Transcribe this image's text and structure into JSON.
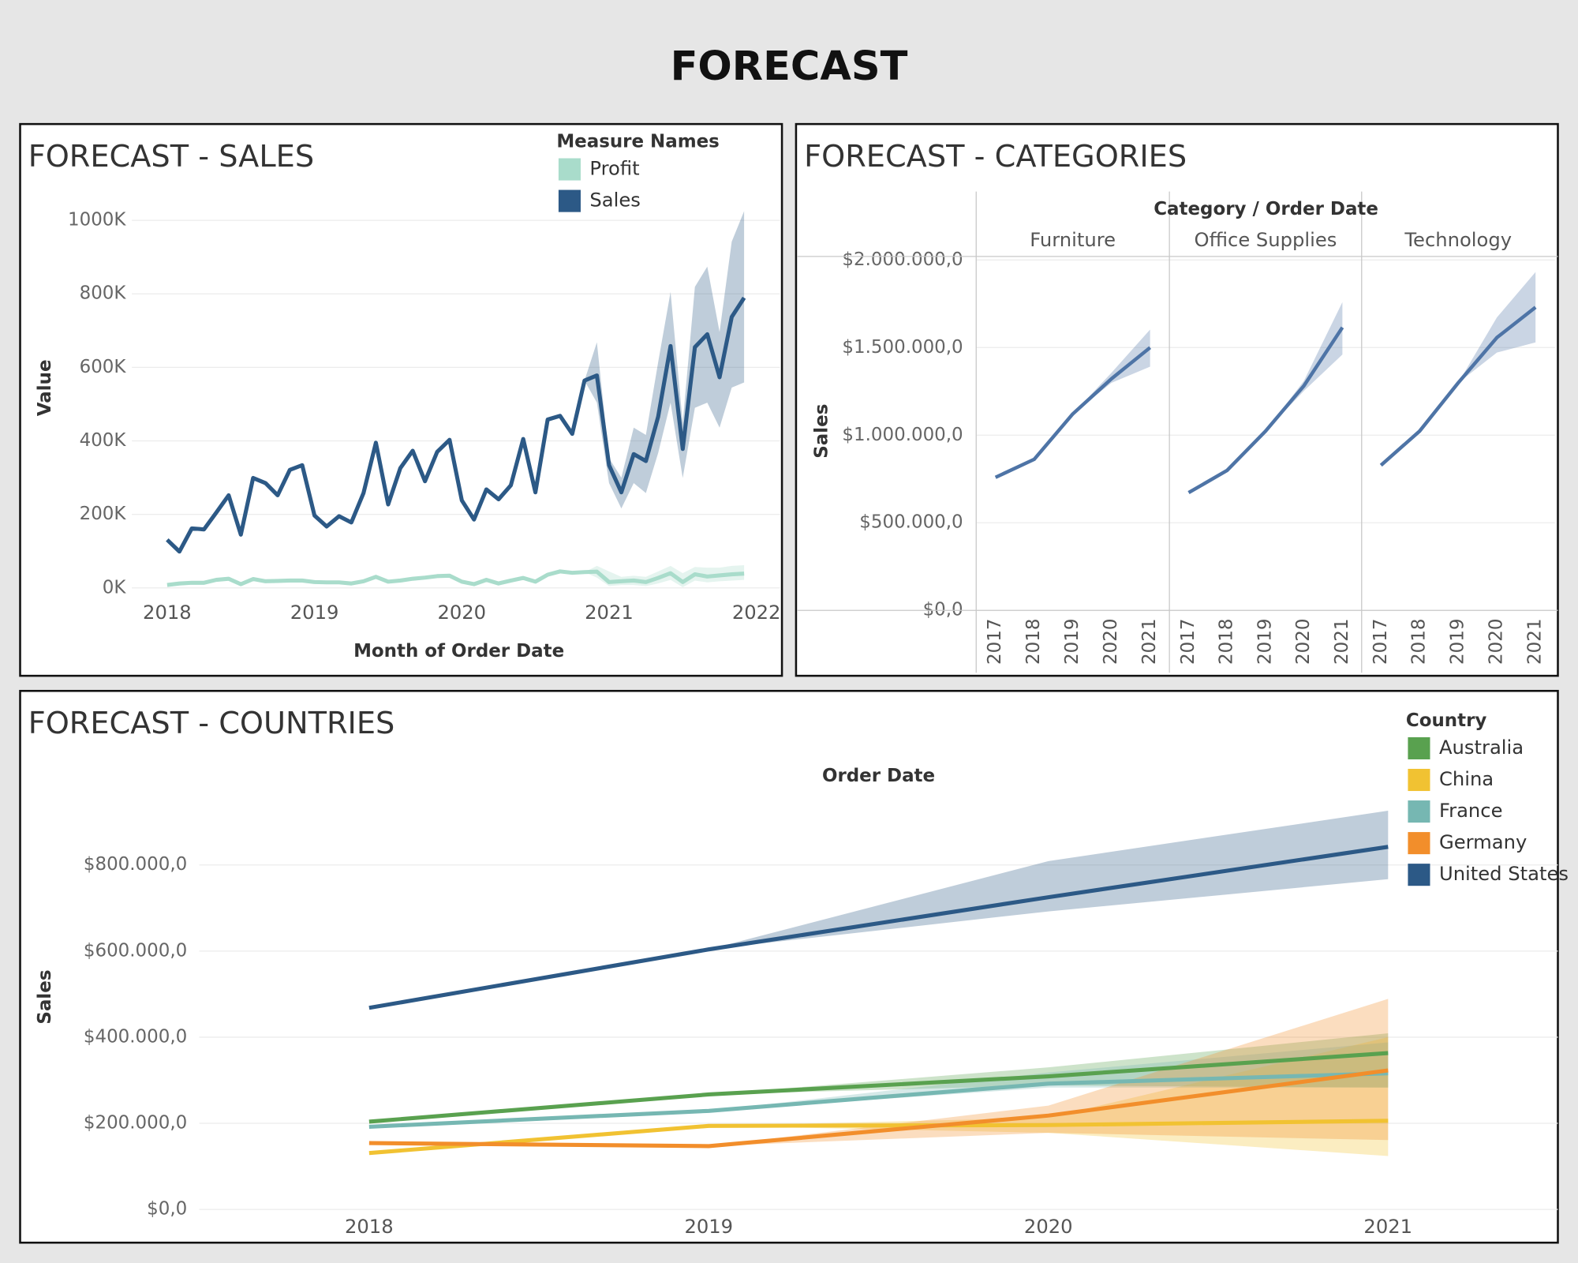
{
  "title": "FORECAST",
  "chart_data": [
    {
      "type": "line",
      "title": "FORECAST - SALES",
      "x_label": "Month of Order Date",
      "y_label": "Value",
      "legend_title": "Measure Names",
      "legend": "top-right",
      "grid": true,
      "x": [
        2018,
        2018.083,
        2018.167,
        2018.25,
        2018.333,
        2018.417,
        2018.5,
        2018.583,
        2018.667,
        2018.75,
        2018.833,
        2018.917,
        2019,
        2019.083,
        2019.167,
        2019.25,
        2019.333,
        2019.417,
        2019.5,
        2019.583,
        2019.667,
        2019.75,
        2019.833,
        2019.917,
        2020,
        2020.083,
        2020.167,
        2020.25,
        2020.333,
        2020.417,
        2020.5,
        2020.583,
        2020.667,
        2020.75,
        2020.833,
        2020.917,
        2021,
        2021.083,
        2021.167,
        2021.25,
        2021.333,
        2021.417,
        2021.5,
        2021.583,
        2021.667,
        2021.75,
        2021.833,
        2021.917
      ],
      "xlim": [
        2017.76,
        2022.16
      ],
      "xticks": [
        2018,
        2019,
        2020,
        2021,
        2022
      ],
      "ylim": [
        -20000,
        1040000
      ],
      "yticks": [
        {
          "value": 0,
          "label": "0K"
        },
        {
          "value": 200000,
          "label": "200K"
        },
        {
          "value": 400000,
          "label": "400K"
        },
        {
          "value": 600000,
          "label": "600K"
        },
        {
          "value": 800000,
          "label": "800K"
        },
        {
          "value": 1000000,
          "label": "1000K"
        }
      ],
      "series": [
        {
          "name": "Profit",
          "color": "#a9dccb",
          "values": [
            8000,
            12000,
            14000,
            14000,
            22000,
            25000,
            10000,
            24000,
            18000,
            19000,
            20000,
            20000,
            16000,
            15000,
            15000,
            12000,
            18000,
            30000,
            17000,
            20000,
            25000,
            28000,
            32000,
            33000,
            17000,
            10000,
            22000,
            12000,
            20000,
            27000,
            17000,
            36000,
            45000,
            41000,
            43000,
            44000,
            16000,
            18000,
            20000,
            16000,
            27000,
            40000,
            16000,
            37000,
            31000,
            34000,
            37000,
            39000
          ],
          "lower": [
            null,
            null,
            null,
            null,
            null,
            null,
            null,
            null,
            null,
            null,
            null,
            null,
            null,
            null,
            null,
            null,
            null,
            null,
            null,
            null,
            null,
            null,
            null,
            null,
            null,
            null,
            null,
            null,
            null,
            null,
            null,
            null,
            null,
            null,
            43000,
            28000,
            5000,
            8000,
            8000,
            5000,
            12000,
            22000,
            2000,
            20000,
            15000,
            18000,
            20000,
            22000
          ],
          "upper": [
            null,
            null,
            null,
            null,
            null,
            null,
            null,
            null,
            null,
            null,
            null,
            null,
            null,
            null,
            null,
            null,
            null,
            null,
            null,
            null,
            null,
            null,
            null,
            null,
            null,
            null,
            null,
            null,
            null,
            null,
            null,
            null,
            null,
            null,
            43000,
            60000,
            45000,
            30000,
            33000,
            30000,
            45000,
            60000,
            40000,
            57000,
            55000,
            55000,
            60000,
            62000
          ]
        },
        {
          "name": "Sales",
          "color": "#2c5986",
          "values": [
            131000,
            99000,
            162000,
            159000,
            205000,
            252000,
            145000,
            299000,
            285000,
            252000,
            321000,
            334000,
            197000,
            167000,
            195000,
            178000,
            258000,
            395000,
            227000,
            326000,
            373000,
            290000,
            370000,
            403000,
            238000,
            186000,
            268000,
            241000,
            279000,
            405000,
            260000,
            458000,
            468000,
            419000,
            564000,
            578000,
            334000,
            260000,
            364000,
            345000,
            466000,
            658000,
            378000,
            655000,
            690000,
            573000,
            737000,
            789000
          ],
          "lower": [
            null,
            null,
            null,
            null,
            null,
            null,
            null,
            null,
            null,
            null,
            null,
            null,
            null,
            null,
            null,
            null,
            null,
            null,
            null,
            null,
            null,
            null,
            null,
            null,
            null,
            null,
            null,
            null,
            null,
            null,
            null,
            null,
            null,
            null,
            564000,
            504000,
            285000,
            216000,
            285000,
            258000,
            367000,
            504000,
            299000,
            490000,
            504000,
            436000,
            545000,
            559000
          ],
          "upper": [
            null,
            null,
            null,
            null,
            null,
            null,
            null,
            null,
            null,
            null,
            null,
            null,
            null,
            null,
            null,
            null,
            null,
            null,
            null,
            null,
            null,
            null,
            null,
            null,
            null,
            null,
            null,
            null,
            null,
            null,
            null,
            null,
            null,
            null,
            564000,
            668000,
            353000,
            300000,
            436000,
            416000,
            614000,
            805000,
            449000,
            819000,
            874000,
            696000,
            942000,
            1025000
          ]
        }
      ]
    },
    {
      "type": "facet-line",
      "title": "FORECAST - CATEGORIES",
      "header": "Category / Order Date",
      "y_label": "Sales",
      "categories": [
        "2017",
        "2018",
        "2019",
        "2020",
        "2021"
      ],
      "color": "#4e74a6",
      "grid": true,
      "ylim": [
        0,
        2020000
      ],
      "yticks": [
        {
          "value": 0,
          "label": "$0,0"
        },
        {
          "value": 500000,
          "label": "$500.000,0"
        },
        {
          "value": 1000000,
          "label": "$1.000.000,0"
        },
        {
          "value": 1500000,
          "label": "$1.500.000,0"
        },
        {
          "value": 2000000,
          "label": "$2.000.000,0"
        }
      ],
      "panels": [
        {
          "name": "Furniture",
          "values": [
            759000,
            862000,
            1121000,
            1322000,
            1500000
          ],
          "lower": [
            null,
            null,
            1121000,
            1299000,
            1391000
          ],
          "upper": [
            null,
            null,
            1121000,
            1356000,
            1603000
          ]
        },
        {
          "name": "Office Supplies",
          "values": [
            672000,
            799000,
            1023000,
            1282000,
            1615000
          ],
          "lower": [
            null,
            null,
            1023000,
            1253000,
            1460000
          ],
          "upper": [
            null,
            null,
            1023000,
            1310000,
            1759000
          ]
        },
        {
          "name": "Technology",
          "values": [
            828000,
            1023000,
            1299000,
            1557000,
            1730000
          ],
          "lower": [
            null,
            null,
            1299000,
            1471000,
            1529000
          ],
          "upper": [
            null,
            null,
            1299000,
            1672000,
            1931000
          ]
        }
      ]
    },
    {
      "type": "line",
      "title": "FORECAST - COUNTRIES",
      "x_label": "Order Date",
      "y_label": "Sales",
      "legend_title": "Country",
      "legend": "top-right",
      "grid": true,
      "categories": [
        "2018",
        "2019",
        "2020",
        "2021"
      ],
      "ylim": [
        0,
        975000
      ],
      "yticks": [
        {
          "value": 0,
          "label": "$0,0"
        },
        {
          "value": 200000,
          "label": "$200.000,0"
        },
        {
          "value": 400000,
          "label": "$400.000,0"
        },
        {
          "value": 600000,
          "label": "$600.000,0"
        },
        {
          "value": 800000,
          "label": "$800.000,0"
        }
      ],
      "series": [
        {
          "name": "Australia",
          "color": "#59a14f",
          "values": [
            204000,
            267000,
            309000,
            363000
          ],
          "lower": [
            null,
            267000,
            288000,
            283000
          ],
          "upper": [
            null,
            267000,
            330000,
            409000
          ]
        },
        {
          "name": "China",
          "color": "#f1c232",
          "values": [
            131000,
            194000,
            196000,
            206000
          ],
          "lower": [
            null,
            194000,
            178000,
            124000
          ],
          "upper": [
            null,
            194000,
            213000,
            400000
          ]
        },
        {
          "name": "France",
          "color": "#76b7b2",
          "values": [
            192000,
            229000,
            292000,
            316000
          ],
          "lower": [
            null,
            229000,
            283000,
            283000
          ],
          "upper": [
            null,
            229000,
            318000,
            388000
          ]
        },
        {
          "name": "Germany",
          "color": "#f28e2b",
          "values": [
            154000,
            147000,
            218000,
            323000
          ],
          "lower": [
            null,
            147000,
            178000,
            161000
          ],
          "upper": [
            null,
            147000,
            241000,
            489000
          ]
        },
        {
          "name": "United States",
          "color": "#2c5986",
          "values": [
            468000,
            604000,
            725000,
            842000
          ],
          "lower": [
            null,
            604000,
            692000,
            767000
          ],
          "upper": [
            null,
            604000,
            809000,
            926000
          ]
        }
      ]
    }
  ]
}
